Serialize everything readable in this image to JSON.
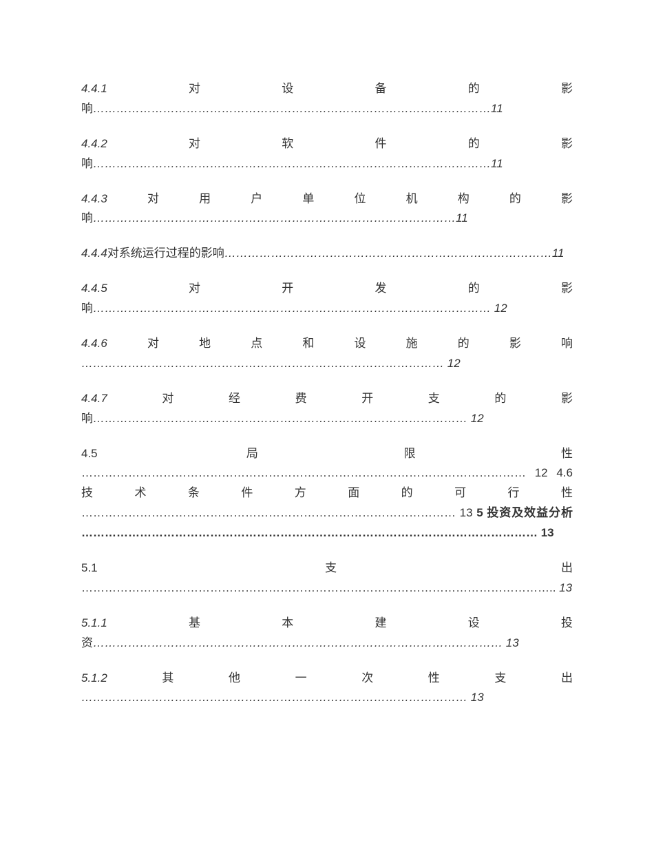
{
  "entries": [
    {
      "class": "italic",
      "prefix": "4.4.1",
      "text": "对设备的影响",
      "dots": "…………………………………………………………………………………………",
      "page": "11"
    },
    {
      "class": "italic",
      "prefix": "4.4.2",
      "text": "对软件的影响",
      "dots": "…………………………………………………………………………………………",
      "page": "11"
    },
    {
      "class": "italic",
      "prefix": "4.4.3",
      "text": "对用户单位机构的影响",
      "dots": "…………………………………………………………………………………",
      "page": "11"
    },
    {
      "class": "italic",
      "prefix": "4.4.4",
      "text": "对系统运行过程的影响",
      "dots": "…………………………………………………………………………",
      "page": "11"
    },
    {
      "class": "italic",
      "prefix": "4.4.5",
      "text": "对开发的影响",
      "dots": "………………………………………………………………………………………… ",
      "page": "12"
    },
    {
      "class": "italic",
      "prefix": "4.4.6",
      "text": "对地点和设施的影响 ",
      "dots": "………………………………………………………………………………… ",
      "page": "12"
    },
    {
      "class": "italic",
      "prefix": "4.4.7",
      "text": "对经费开支的影响",
      "dots": "…………………………………………………………………………………… ",
      "page": "12"
    }
  ],
  "combined45": "4.5 局限性 …………………………………………………………………………………………………… 12 4.6 技术条件方面的可行性 …………………………………………………………………………………… 13 ",
  "combined5": "5 投资及效益分析 ……………………………………………………………………………………………………… 13",
  "entries2": [
    {
      "class": "normal",
      "prefix": "5.1",
      "text": " 支出 ",
      "dots": "………………………………………………………………………………………………………….. ",
      "page": "13"
    },
    {
      "class": "italic",
      "prefix": "5.1.1",
      "text": "基本建设投资",
      "dots": "…………………………………………………………………………………………… ",
      "page": "13"
    },
    {
      "class": "italic",
      "prefix": "5.1.2",
      "text": "其他一次性支出 ",
      "dots": "……………………………………………………………………………………… ",
      "page": "13"
    }
  ]
}
